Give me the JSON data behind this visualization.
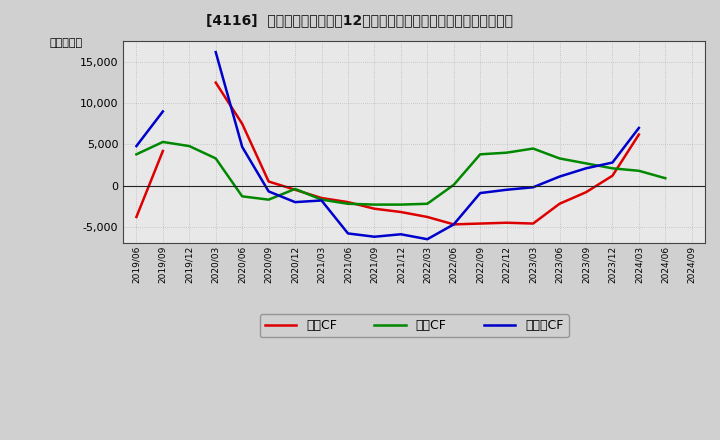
{
  "title": "[4116]  キャッシュフローの12か月移動合計の対前年同期増減額の推移",
  "ylabel": "（百万円）",
  "legend_labels": [
    "営業CF",
    "投資CF",
    "フリーCF"
  ],
  "line_colors": [
    "#dd0000",
    "#008800",
    "#0000cc"
  ],
  "fig_bg": "#d0d0d0",
  "plot_bg": "#e8e8e8",
  "dates": [
    "2019/06",
    "2019/09",
    "2019/12",
    "2020/03",
    "2020/06",
    "2020/09",
    "2020/12",
    "2021/03",
    "2021/06",
    "2021/09",
    "2021/12",
    "2022/03",
    "2022/06",
    "2022/09",
    "2022/12",
    "2023/03",
    "2023/06",
    "2023/09",
    "2023/12",
    "2024/03",
    "2024/06",
    "2024/09"
  ],
  "operating_cf": [
    -3800,
    4200,
    null,
    12500,
    7500,
    500,
    -500,
    -1500,
    -2000,
    -2800,
    -3200,
    -3800,
    -4700,
    -4600,
    -4500,
    -4600,
    -2200,
    -800,
    1200,
    6200,
    null,
    null
  ],
  "investing_cf": [
    3800,
    5300,
    4800,
    3300,
    -1300,
    -1700,
    -400,
    -1700,
    -2200,
    -2300,
    -2300,
    -2200,
    100,
    3800,
    4000,
    4500,
    3300,
    2700,
    2100,
    1800,
    900,
    null
  ],
  "free_cf": [
    4800,
    9000,
    null,
    16200,
    4700,
    -700,
    -2000,
    -1800,
    -5800,
    -6200,
    -5900,
    -6500,
    -4700,
    -900,
    -500,
    -200,
    1100,
    2100,
    2800,
    7000,
    null,
    null
  ],
  "ylim": [
    -7000,
    17500
  ],
  "yticks": [
    -5000,
    0,
    5000,
    10000,
    15000
  ]
}
